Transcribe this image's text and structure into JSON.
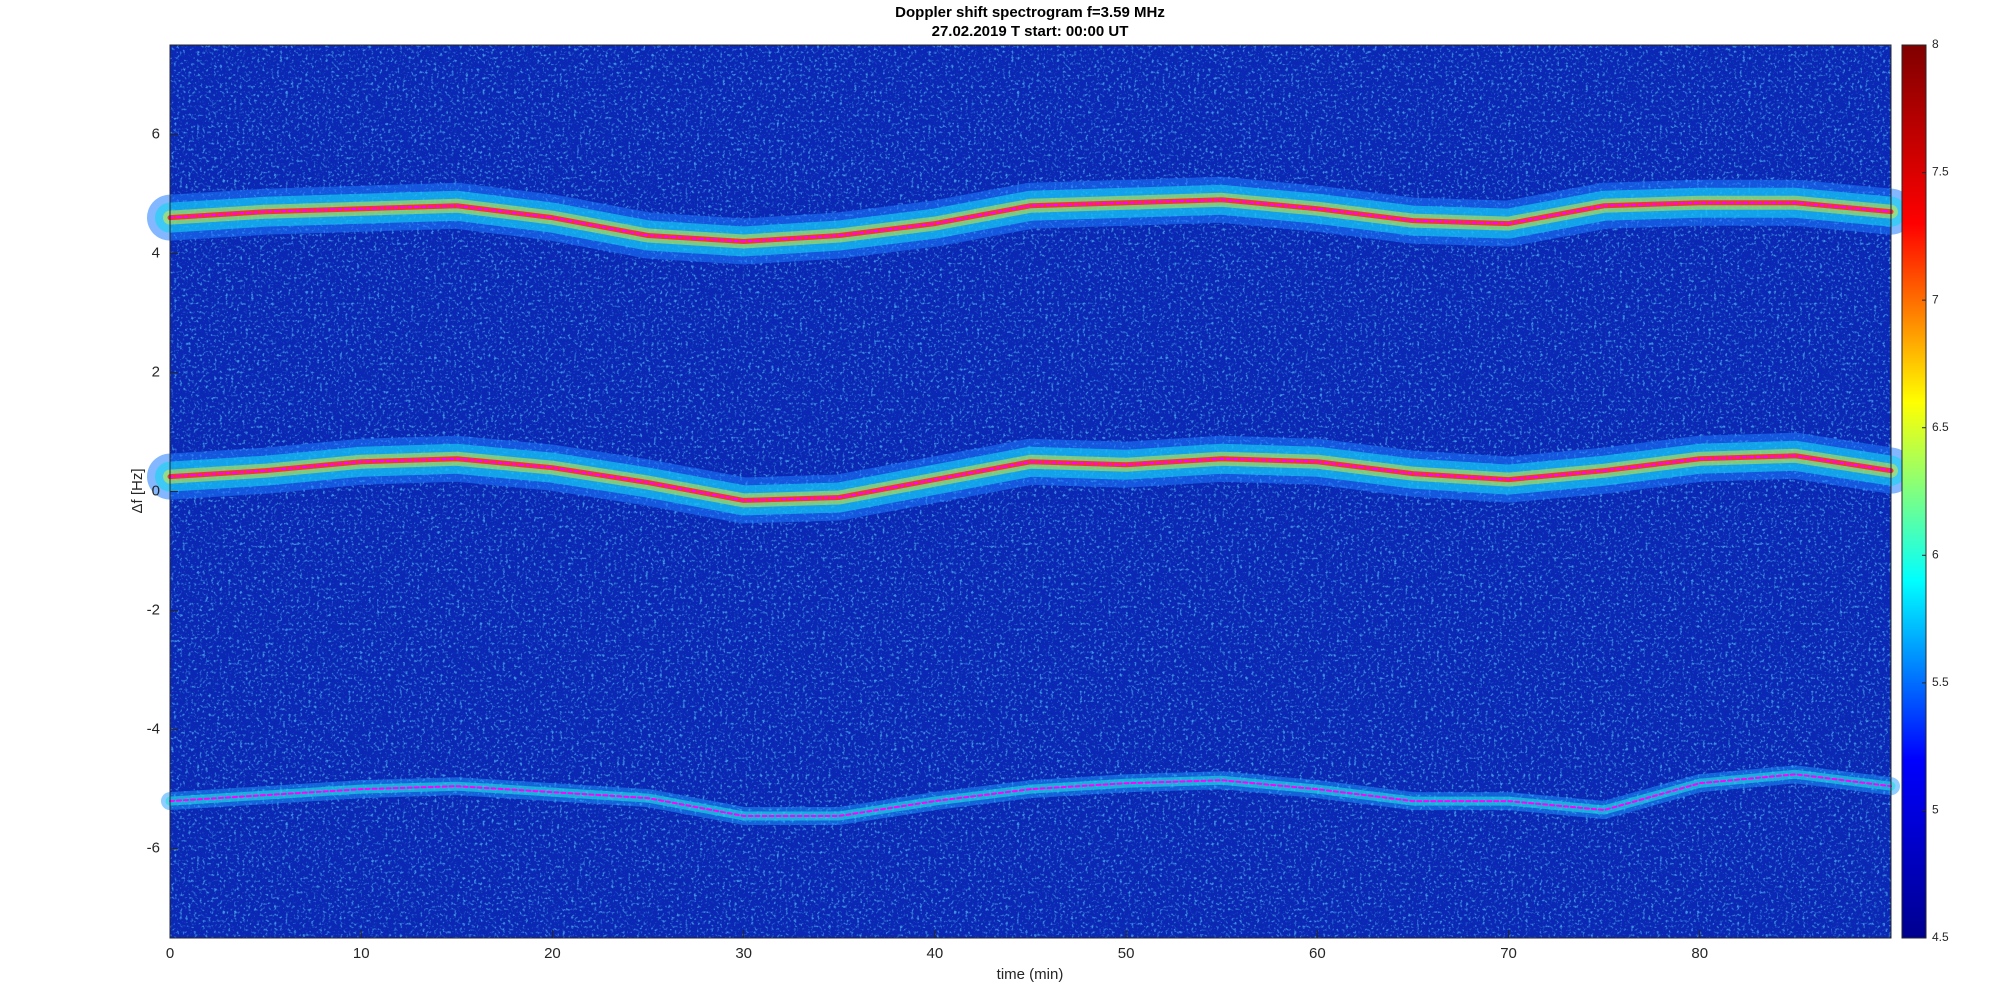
{
  "chart_data": {
    "type": "spectrogram",
    "title": "Doppler shift spectrogram f=3.59 MHz",
    "subtitle": "27.02.2019   T start: 00:00 UT",
    "x_label": "time (min)",
    "y_label": "Δf [Hz]",
    "x": [
      0,
      5,
      10,
      15,
      20,
      25,
      30,
      35,
      40,
      45,
      50,
      55,
      60,
      65,
      70,
      75,
      80,
      85,
      90
    ],
    "series": [
      {
        "color": "#ff00ff",
        "values": [
          4.6,
          4.7,
          4.75,
          4.8,
          4.6,
          4.3,
          4.2,
          4.3,
          4.5,
          4.8,
          4.85,
          4.9,
          4.75,
          4.55,
          4.5,
          4.8,
          4.85,
          4.85,
          4.7
        ]
      },
      {
        "color": "#ff00ff",
        "values": [
          0.25,
          0.35,
          0.5,
          0.55,
          0.4,
          0.15,
          -0.15,
          -0.1,
          0.2,
          0.5,
          0.45,
          0.55,
          0.5,
          0.3,
          0.2,
          0.35,
          0.55,
          0.6,
          0.35
        ]
      },
      {
        "color": "#ff00ff",
        "values": [
          -5.2,
          -5.1,
          -5.0,
          -4.95,
          -5.05,
          -5.15,
          -5.45,
          -5.45,
          -5.2,
          -5.0,
          -4.9,
          -4.85,
          -5.0,
          -5.2,
          -5.2,
          -5.35,
          -4.9,
          -4.75,
          -4.95
        ]
      }
    ],
    "xlim": [
      0,
      90
    ],
    "ylim": [
      -7.5,
      7.5
    ],
    "xticks": [
      0,
      10,
      20,
      30,
      40,
      50,
      60,
      70,
      80
    ],
    "yticks": [
      -6,
      -4,
      -2,
      0,
      2,
      4,
      6
    ],
    "clim": [
      4.5,
      8
    ],
    "cticks": [
      4.5,
      5,
      5.5,
      6,
      6.5,
      7,
      7.5,
      8
    ],
    "colormap": [
      "#00008f",
      "#0000ff",
      "#00ffff",
      "#ffff00",
      "#ff0000",
      "#800000"
    ]
  }
}
